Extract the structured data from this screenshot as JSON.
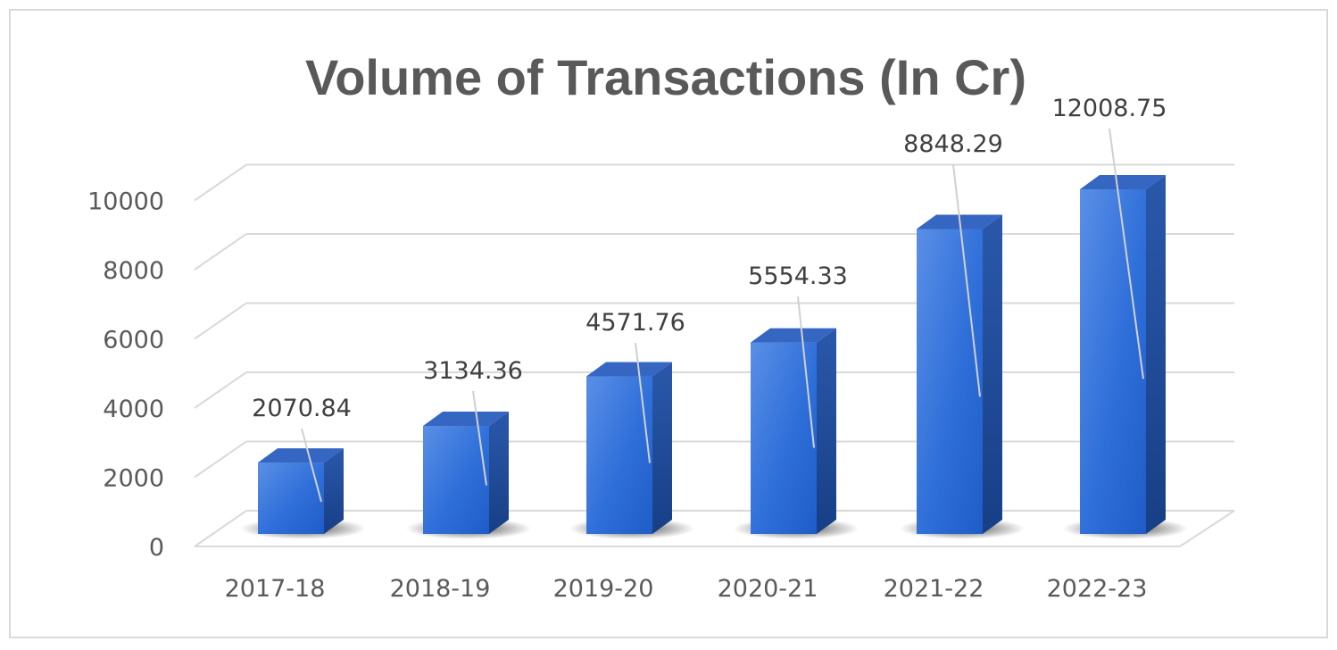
{
  "chart_data": {
    "type": "bar",
    "title": "Volume of Transactions (In Cr)",
    "xlabel": "",
    "ylabel": "",
    "categories": [
      "2017-18",
      "2018-19",
      "2019-20",
      "2020-21",
      "2021-22",
      "2022-23"
    ],
    "values": [
      2070.84,
      3134.36,
      4571.76,
      5554.33,
      8848.29,
      12008.75
    ],
    "data_labels": [
      "2070.84",
      "3134.36",
      "4571.76",
      "5554.33",
      "8848.29",
      "12008.75"
    ],
    "yticks": [
      0,
      2000,
      4000,
      6000,
      8000,
      10000
    ],
    "ylim": [
      0,
      10000
    ],
    "grid": true,
    "legend": "none",
    "style": "3d-column",
    "colors": {
      "bar_front": "#2f6fd9",
      "bar_side": "#1e4fa3",
      "bar_top": "#3566c2",
      "gridline": "#d9d9d9",
      "text": "#595959"
    }
  }
}
